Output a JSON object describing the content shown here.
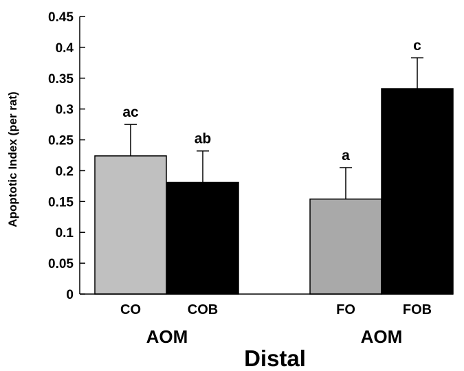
{
  "chart_data": {
    "type": "bar",
    "title": "Distal",
    "ylabel": "Apoptotic Index (per rat)",
    "xlabel": "",
    "ylim": [
      0,
      0.45
    ],
    "yticks": [
      "0",
      "0.05",
      "0.1",
      "0.15",
      "0.2",
      "0.25",
      "0.3",
      "0.35",
      "0.4",
      "0.45"
    ],
    "categories": [
      "CO",
      "COB",
      "FO",
      "FOB"
    ],
    "values": [
      0.224,
      0.181,
      0.154,
      0.333
    ],
    "error_upper": [
      0.275,
      0.232,
      0.205,
      0.383
    ],
    "significance_labels": [
      "ac",
      "ab",
      "a",
      "c"
    ],
    "bar_colors": [
      "#c0c0c0",
      "#000000",
      "#a9a9a9",
      "#000000"
    ],
    "groups": [
      {
        "label": "AOM",
        "categories": [
          "CO",
          "COB"
        ]
      },
      {
        "label": "AOM",
        "categories": [
          "FO",
          "FOB"
        ]
      }
    ],
    "grid": false,
    "legend": "none"
  }
}
